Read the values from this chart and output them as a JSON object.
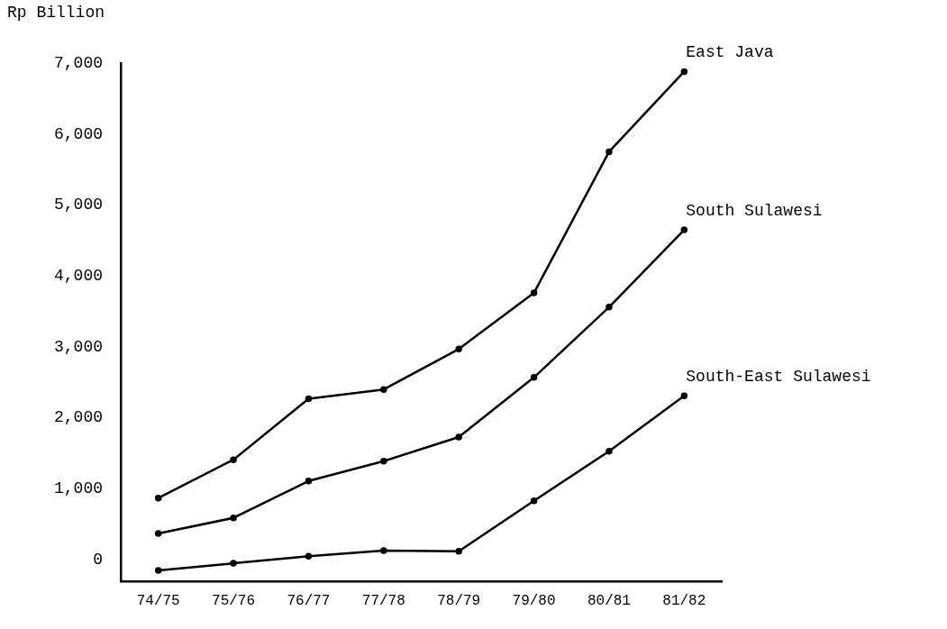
{
  "chart_data": {
    "type": "line",
    "ylabel": "Rp Billion",
    "categories": [
      "74/75",
      "75/76",
      "76/77",
      "77/78",
      "78/79",
      "79/80",
      "80/81",
      "81/82"
    ],
    "series": [
      {
        "name": "East Java",
        "color": "#000000",
        "values": [
          870,
          1410,
          2270,
          2400,
          2970,
          3760,
          5750,
          6880
        ]
      },
      {
        "name": "South Sulawesi",
        "color": "#000000",
        "values": [
          370,
          590,
          1110,
          1390,
          1730,
          2570,
          3560,
          4650
        ]
      },
      {
        "name": "South-East Sulawesi",
        "color": "#000000",
        "values": [
          -150,
          -50,
          50,
          130,
          120,
          830,
          1530,
          2310
        ]
      }
    ],
    "ylim": [
      -300,
      7000
    ],
    "yticks": [
      {
        "value": 0,
        "label": "0"
      },
      {
        "value": 1000,
        "label": "1,000"
      },
      {
        "value": 2000,
        "label": "2,000"
      },
      {
        "value": 3000,
        "label": "3,000"
      },
      {
        "value": 4000,
        "label": "4,000"
      },
      {
        "value": 5000,
        "label": "5,000"
      },
      {
        "value": 6000,
        "label": "6,000"
      },
      {
        "value": 7000,
        "label": "7,000"
      }
    ],
    "grid": false,
    "legend": false,
    "marker": "circle",
    "line_style": "solid"
  }
}
